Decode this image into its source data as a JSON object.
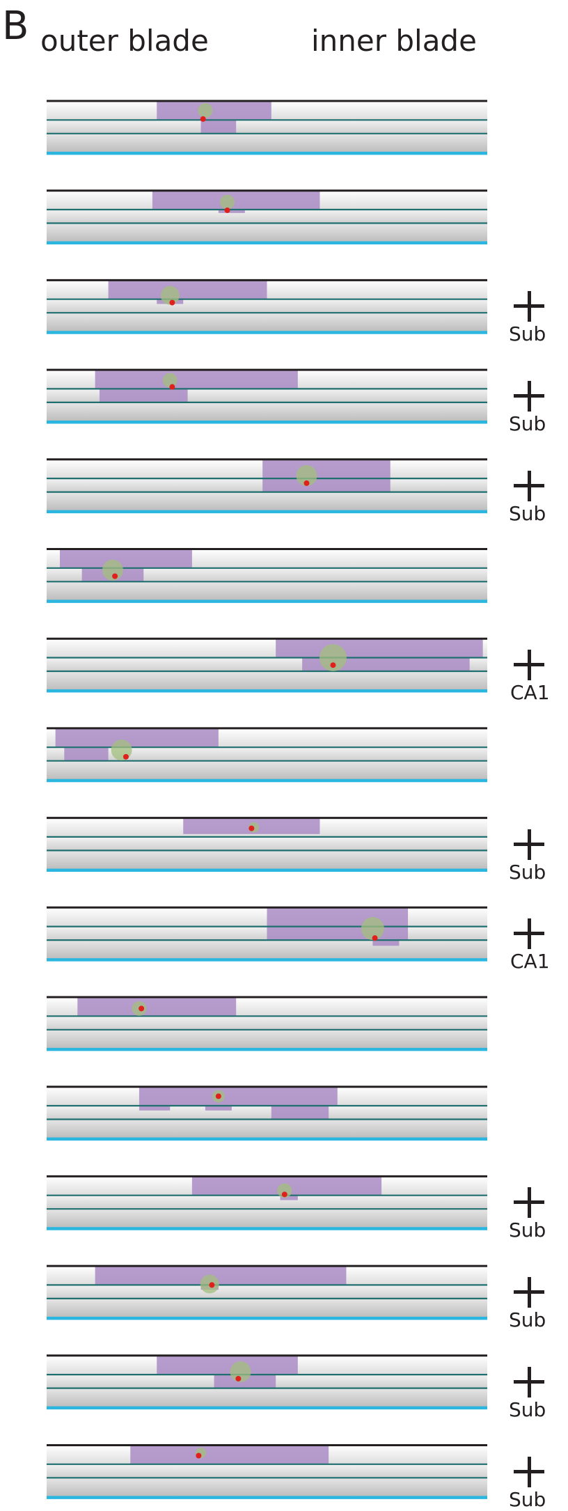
{
  "panel_letter": "B",
  "headers": {
    "outer": "outer blade",
    "inner": "inner blade"
  },
  "colors": {
    "layer_line": "#1f6f6f",
    "top_line": "#231f20",
    "bottom_line": "#2bb6e0",
    "purple": "#a98cc4",
    "green": "#a3bf7e",
    "red_dot": "#e0201c"
  },
  "strips": [
    {
      "boxes": [
        [
          0.25,
          0.51,
          0,
          1
        ],
        [
          0.35,
          0.43,
          1,
          1
        ]
      ],
      "cell": {
        "x": 0.36,
        "layer": 0.5,
        "r": 0.35
      },
      "dot": {
        "x": 0.355,
        "layer": 0.95
      },
      "tag": ""
    },
    {
      "boxes": [
        [
          0.24,
          0.62,
          0,
          1
        ],
        [
          0.39,
          0.45,
          1,
          0.25
        ]
      ],
      "cell": {
        "x": 0.41,
        "layer": 0.6,
        "r": 0.35
      },
      "dot": {
        "x": 0.41,
        "layer": 1.05
      },
      "tag": ""
    },
    {
      "boxes": [
        [
          0.14,
          0.5,
          0,
          1
        ],
        [
          0.25,
          0.31,
          1,
          0.35
        ]
      ],
      "cell": {
        "x": 0.28,
        "layer": 0.8,
        "r": 0.45
      },
      "dot": {
        "x": 0.285,
        "layer": 1.25
      },
      "tag": "Sub"
    },
    {
      "boxes": [
        [
          0.11,
          0.57,
          0,
          1
        ],
        [
          0.12,
          0.32,
          1,
          1
        ]
      ],
      "cell": {
        "x": 0.28,
        "layer": 0.55,
        "r": 0.35
      },
      "dot": {
        "x": 0.285,
        "layer": 0.9
      },
      "tag": "Sub"
    },
    {
      "boxes": [
        [
          0.49,
          0.78,
          0,
          2
        ]
      ],
      "cell": {
        "x": 0.59,
        "layer": 0.85,
        "r": 0.5
      },
      "dot": {
        "x": 0.59,
        "layer": 1.35
      },
      "tag": "Sub"
    },
    {
      "boxes": [
        [
          0.03,
          0.33,
          0,
          1
        ],
        [
          0.08,
          0.22,
          1,
          1
        ]
      ],
      "cell": {
        "x": 0.15,
        "layer": 1.15,
        "r": 0.5
      },
      "dot": {
        "x": 0.155,
        "layer": 1.6
      },
      "tag": ""
    },
    {
      "boxes": [
        [
          0.52,
          0.99,
          0,
          1
        ],
        [
          0.58,
          0.96,
          1,
          1
        ]
      ],
      "cell": {
        "x": 0.65,
        "layer": 1.0,
        "r": 0.65
      },
      "dot": {
        "x": 0.65,
        "layer": 1.55
      },
      "tag": "CA1"
    },
    {
      "boxes": [
        [
          0.02,
          0.39,
          0,
          1
        ],
        [
          0.04,
          0.14,
          1,
          1
        ]
      ],
      "cell": {
        "x": 0.17,
        "layer": 1.2,
        "r": 0.5
      },
      "dot": {
        "x": 0.18,
        "layer": 1.7
      },
      "tag": ""
    },
    {
      "boxes": [
        [
          0.31,
          0.62,
          0,
          0.85
        ]
      ],
      "cell": {
        "x": 0.47,
        "layer": 0.5,
        "r": 0.25
      },
      "dot": {
        "x": 0.465,
        "layer": 0.55
      },
      "tag": "Sub"
    },
    {
      "boxes": [
        [
          0.5,
          0.82,
          0,
          2
        ],
        [
          0.74,
          0.8,
          2,
          0.3
        ]
      ],
      "cell": {
        "x": 0.74,
        "layer": 1.15,
        "r": 0.55
      },
      "dot": {
        "x": 0.745,
        "layer": 1.85
      },
      "tag": "CA1"
    },
    {
      "boxes": [
        [
          0.07,
          0.43,
          0,
          1
        ]
      ],
      "cell": {
        "x": 0.21,
        "layer": 0.6,
        "r": 0.35
      },
      "dot": {
        "x": 0.215,
        "layer": 0.6
      },
      "tag": ""
    },
    {
      "boxes": [
        [
          0.21,
          0.66,
          0,
          1
        ],
        [
          0.21,
          0.28,
          1,
          0.35
        ],
        [
          0.36,
          0.42,
          1,
          0.35
        ],
        [
          0.51,
          0.64,
          1,
          1
        ]
      ],
      "cell": {
        "x": 0.39,
        "layer": 0.5,
        "r": 0.3
      },
      "dot": {
        "x": 0.39,
        "layer": 0.5
      },
      "tag": ""
    },
    {
      "boxes": [
        [
          0.33,
          0.76,
          0,
          1
        ],
        [
          0.53,
          0.57,
          1,
          0.35
        ]
      ],
      "cell": {
        "x": 0.54,
        "layer": 0.75,
        "r": 0.35
      },
      "dot": {
        "x": 0.54,
        "layer": 0.95
      },
      "tag": "Sub"
    },
    {
      "boxes": [
        [
          0.11,
          0.68,
          0,
          1
        ],
        [
          0.35,
          0.39,
          1,
          0.35
        ]
      ],
      "cell": {
        "x": 0.37,
        "layer": 0.95,
        "r": 0.45
      },
      "dot": {
        "x": 0.375,
        "layer": 1.0
      },
      "tag": "Sub"
    },
    {
      "boxes": [
        [
          0.25,
          0.57,
          0,
          1
        ],
        [
          0.38,
          0.52,
          1,
          1
        ]
      ],
      "cell": {
        "x": 0.44,
        "layer": 0.85,
        "r": 0.5
      },
      "dot": {
        "x": 0.435,
        "layer": 1.3
      },
      "tag": "Sub"
    },
    {
      "boxes": [
        [
          0.19,
          0.64,
          0,
          1
        ]
      ],
      "cell": {
        "x": 0.35,
        "layer": 0.4,
        "r": 0.25
      },
      "dot": {
        "x": 0.345,
        "layer": 0.55
      },
      "tag": "Sub"
    }
  ]
}
